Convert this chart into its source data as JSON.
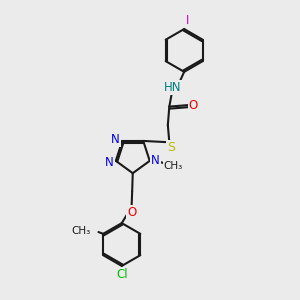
{
  "bg_color": "#ebebeb",
  "bond_color": "#1a1a1a",
  "N_color": "#0000ee",
  "O_color": "#ee0000",
  "S_color": "#bbbb00",
  "Cl_color": "#00bb00",
  "I_color": "#cc00cc",
  "H_color": "#008080",
  "figsize": [
    3.0,
    3.0
  ],
  "dpi": 100,
  "xlim": [
    0,
    10
  ],
  "ylim": [
    0,
    10
  ]
}
